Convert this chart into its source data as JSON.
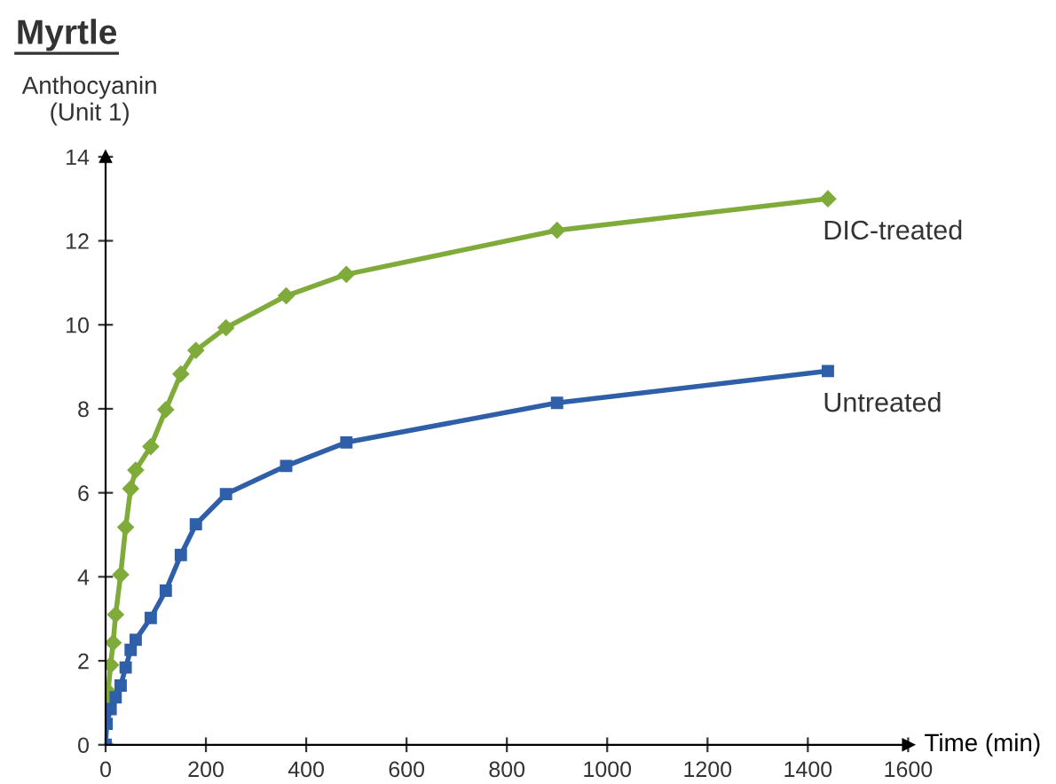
{
  "chart_data": {
    "type": "line",
    "title": "Myrtle",
    "ylabel": "Anthocyanin\n(Unit 1)",
    "xlabel": "Time (min)",
    "xlim": [
      0,
      1600
    ],
    "xticks": [
      0,
      200,
      400,
      600,
      800,
      1000,
      1200,
      1400,
      1600
    ],
    "ylim": [
      0,
      14
    ],
    "yticks": [
      0,
      2,
      4,
      6,
      8,
      10,
      12,
      14
    ],
    "grid": false,
    "legend": false,
    "line_style": "solid",
    "series": [
      {
        "name": "DIC-treated",
        "color": "#7fab3a",
        "marker": "diamond",
        "x": [
          0,
          2,
          5,
          10,
          15,
          20,
          30,
          40,
          50,
          60,
          90,
          120,
          150,
          180,
          240,
          360,
          480,
          900,
          1440
        ],
        "values": [
          0,
          0.88,
          1.27,
          1.9,
          2.43,
          3.1,
          4.05,
          5.18,
          6.1,
          6.54,
          7.1,
          7.98,
          8.83,
          9.39,
          9.93,
          10.69,
          11.2,
          12.25,
          13.0
        ]
      },
      {
        "name": "Untreated",
        "color": "#2e5fa8",
        "marker": "square",
        "x": [
          0,
          2,
          10,
          20,
          30,
          40,
          50,
          60,
          90,
          120,
          150,
          180,
          240,
          360,
          480,
          900,
          1440
        ],
        "values": [
          0,
          0.5,
          0.85,
          1.13,
          1.41,
          1.84,
          2.26,
          2.5,
          3.02,
          3.67,
          4.52,
          5.25,
          5.97,
          6.64,
          7.2,
          8.14,
          8.9
        ]
      }
    ]
  }
}
